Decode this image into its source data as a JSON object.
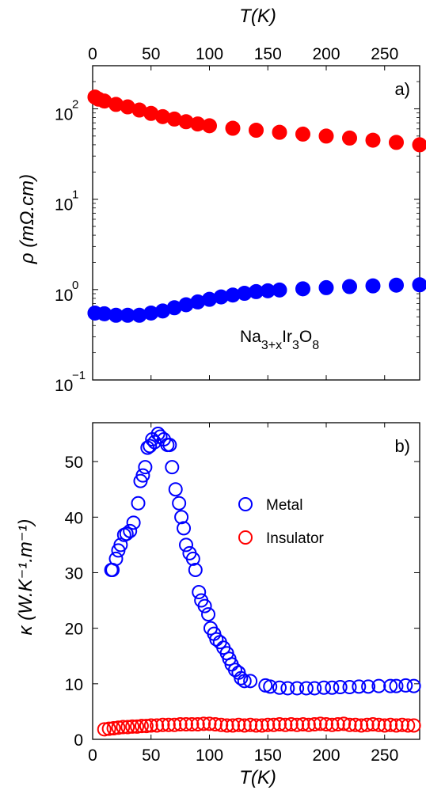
{
  "chart_data": [
    {
      "type": "scatter",
      "panel_label": "a)",
      "xlabel": "T(K)",
      "ylabel": "ρ (mΩ.cm)",
      "x_ticks": [
        0,
        50,
        100,
        150,
        200,
        250
      ],
      "xlim": [
        0,
        280
      ],
      "y_scale": "log",
      "ylim": [
        0.1,
        300
      ],
      "y_ticks": [
        {
          "value": 0.1,
          "base": "10",
          "exp": "−1"
        },
        {
          "value": 1,
          "base": "10",
          "exp": "0"
        },
        {
          "value": 10,
          "base": "10",
          "exp": "1"
        },
        {
          "value": 100,
          "base": "10",
          "exp": "2"
        }
      ],
      "annotation": {
        "base": "Na",
        "parts": [
          {
            "sub": "3+x"
          },
          {
            "text": "Ir"
          },
          {
            "sub": "3"
          },
          {
            "text": "O"
          },
          {
            "sub": "8"
          }
        ]
      },
      "series": [
        {
          "color": "#ff0000",
          "x": [
            2,
            5,
            10,
            20,
            30,
            40,
            50,
            60,
            70,
            80,
            90,
            100,
            120,
            140,
            160,
            180,
            200,
            220,
            240,
            260,
            280
          ],
          "y": [
            135,
            128,
            122,
            112,
            105,
            97,
            89,
            82,
            77,
            72,
            68,
            65,
            61,
            58,
            55,
            52.5,
            50,
            47.5,
            45,
            42.5,
            40
          ]
        },
        {
          "color": "#0000ff",
          "x": [
            2,
            10,
            20,
            30,
            40,
            50,
            60,
            70,
            80,
            90,
            100,
            110,
            120,
            130,
            140,
            150,
            160,
            180,
            200,
            220,
            240,
            260,
            280
          ],
          "y": [
            0.55,
            0.54,
            0.52,
            0.52,
            0.52,
            0.55,
            0.58,
            0.63,
            0.68,
            0.73,
            0.78,
            0.83,
            0.87,
            0.91,
            0.95,
            0.97,
            0.99,
            1.02,
            1.05,
            1.08,
            1.1,
            1.12,
            1.13
          ]
        }
      ]
    },
    {
      "type": "scatter",
      "panel_label": "b)",
      "xlabel": "T(K)",
      "ylabel": "κ (W.K⁻¹.m⁻¹)",
      "x_ticks": [
        0,
        50,
        100,
        150,
        200,
        250
      ],
      "xlim": [
        0,
        280
      ],
      "ylim": [
        0,
        57
      ],
      "y_ticks": [
        0,
        10,
        20,
        30,
        40,
        50
      ],
      "legend_position": "center-right",
      "series": [
        {
          "name": "Metal",
          "color": "#0000ff",
          "x": [
            16,
            17,
            20,
            22,
            24,
            27,
            29,
            32,
            35,
            39,
            41,
            43,
            45,
            47,
            49,
            51,
            53,
            56,
            58,
            61,
            64,
            66,
            68,
            71,
            74,
            76,
            78,
            80,
            83,
            86,
            88,
            91,
            93,
            96,
            99,
            101,
            104,
            106,
            109,
            112,
            115,
            117,
            119,
            122,
            125,
            127,
            130,
            135,
            148,
            152,
            160,
            167,
            175,
            183,
            190,
            198,
            205,
            212,
            220,
            228,
            236,
            245,
            255,
            260,
            268,
            275
          ],
          "y": [
            30.5,
            30.5,
            32.5,
            34,
            35,
            36.8,
            37,
            37.5,
            39,
            42.5,
            46.5,
            47.5,
            49,
            52.5,
            52.8,
            54,
            53.5,
            55,
            54.5,
            54,
            53,
            53,
            49,
            45,
            42.5,
            40,
            38,
            35,
            33.5,
            32.5,
            30.5,
            26.5,
            25,
            24,
            22.5,
            20,
            19,
            18,
            17.5,
            16.5,
            15.5,
            14.5,
            13.5,
            12.5,
            12,
            11,
            10.5,
            10.5,
            9.7,
            9.5,
            9.3,
            9.2,
            9.2,
            9.2,
            9.2,
            9.3,
            9.3,
            9.4,
            9.4,
            9.5,
            9.5,
            9.6,
            9.6,
            9.6,
            9.7,
            9.6
          ]
        },
        {
          "name": "Insulator",
          "color": "#ff0000",
          "x": [
            10,
            14,
            18,
            22,
            26,
            30,
            34,
            38,
            42,
            46,
            50,
            55,
            60,
            65,
            70,
            75,
            80,
            85,
            90,
            95,
            100,
            105,
            110,
            115,
            120,
            125,
            130,
            135,
            140,
            145,
            150,
            155,
            160,
            165,
            170,
            175,
            180,
            185,
            190,
            195,
            200,
            205,
            210,
            215,
            220,
            225,
            230,
            235,
            240,
            245,
            250,
            255,
            260,
            265,
            270,
            275
          ],
          "y": [
            1.8,
            1.9,
            2.0,
            2.1,
            2.2,
            2.2,
            2.3,
            2.3,
            2.4,
            2.4,
            2.5,
            2.5,
            2.6,
            2.6,
            2.6,
            2.7,
            2.7,
            2.7,
            2.7,
            2.8,
            2.8,
            2.7,
            2.6,
            2.5,
            2.5,
            2.6,
            2.5,
            2.6,
            2.5,
            2.5,
            2.6,
            2.6,
            2.7,
            2.6,
            2.7,
            2.6,
            2.7,
            2.6,
            2.7,
            2.8,
            2.7,
            2.6,
            2.7,
            2.8,
            2.6,
            2.6,
            2.5,
            2.6,
            2.7,
            2.6,
            2.5,
            2.6,
            2.5,
            2.6,
            2.5,
            2.5
          ]
        }
      ]
    }
  ]
}
